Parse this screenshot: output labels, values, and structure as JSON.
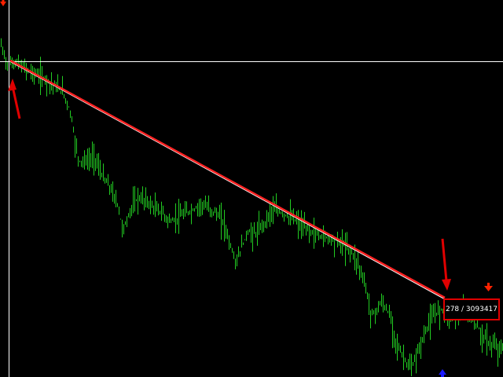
{
  "chart": {
    "background_color": "#000000",
    "bar_color": "#22cc22",
    "crosshair_color": "#ffffff",
    "trendline_color": "#ff2222",
    "annotation_color": "#e00000",
    "sell_arrow_color": "#ff2200",
    "buy_arrow_color": "#1a1aff"
  },
  "crosshair_readout": {
    "text": "278 / 3093417"
  },
  "icons": {
    "sell_signal": "down-arrow-icon",
    "buy_signal": "up-arrow-icon"
  }
}
